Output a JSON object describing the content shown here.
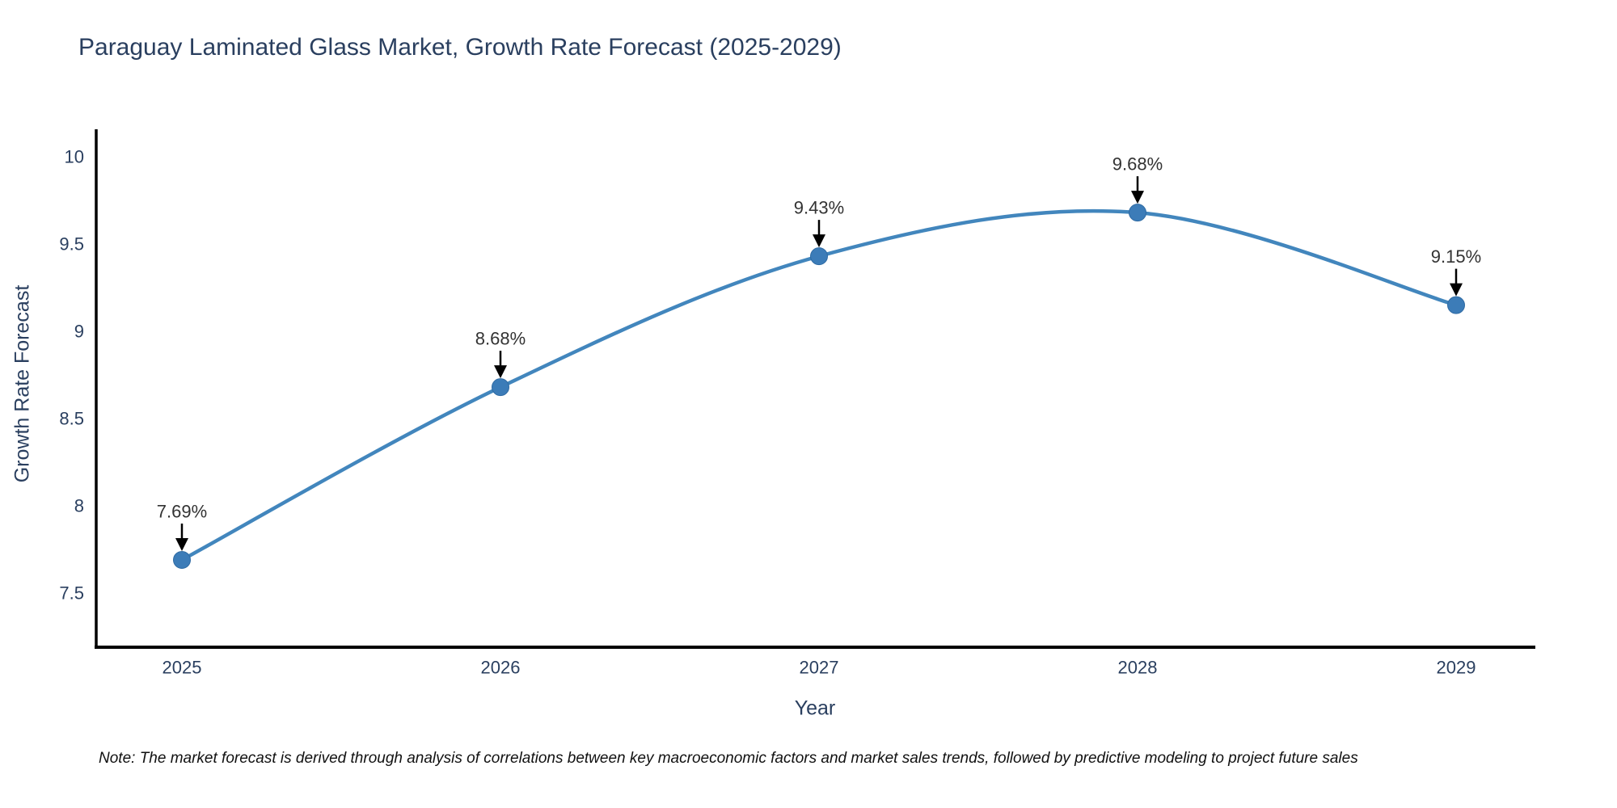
{
  "chart_data": {
    "type": "line",
    "title": "Paraguay Laminated Glass Market, Growth Rate Forecast (2025-2029)",
    "xlabel": "Year",
    "ylabel": "Growth Rate Forecast",
    "categories": [
      "2025",
      "2026",
      "2027",
      "2028",
      "2029"
    ],
    "values": [
      7.69,
      8.68,
      9.43,
      9.68,
      9.15
    ],
    "point_labels": [
      "7.69%",
      "8.68%",
      "9.43%",
      "9.68%",
      "9.15%"
    ],
    "yticks": [
      7.5,
      8,
      8.5,
      9,
      9.5,
      10
    ],
    "ylim": [
      7.17,
      10.18
    ],
    "grid": false,
    "legend": false,
    "line_shape": "spline",
    "colors": {
      "line": "#4286bd",
      "marker_fill": "#3c7cb8",
      "marker_edge": "#2e6aa3",
      "axis": "#000000",
      "arrow": "#000000",
      "text": "#2a3f5f",
      "annotation_text": "#333333"
    },
    "note": "Note: The market forecast is derived through analysis of correlations between key macroeconomic factors and market sales trends, followed by predictive modeling to project future sales"
  }
}
